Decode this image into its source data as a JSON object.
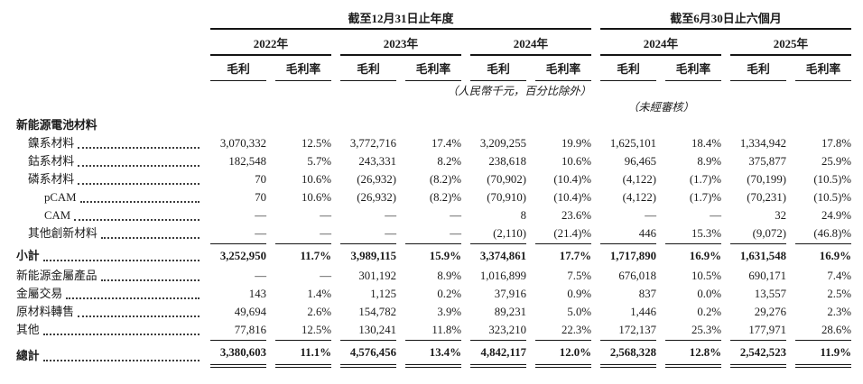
{
  "header": {
    "group_annual": "截至12月31日止年度",
    "group_interim": "截至6月30日止六個月",
    "years": [
      "2022年",
      "2023年",
      "2024年",
      "2024年",
      "2025年"
    ],
    "col_profit": "毛利",
    "col_margin": "毛利率",
    "note_currency": "（人民幣千元，百分比除外）",
    "note_unaudited": "（未經審核）"
  },
  "table": {
    "rows": [
      {
        "label": "新能源電池材料",
        "style": "section",
        "indent": 0,
        "leaders": false,
        "values": []
      },
      {
        "label": "鎳系材料",
        "style": "item",
        "indent": 1,
        "leaders": true,
        "values": [
          "3,070,332",
          "12.5%",
          "3,772,716",
          "17.4%",
          "3,209,255",
          "19.9%",
          "1,625,101",
          "18.4%",
          "1,334,942",
          "17.8%"
        ]
      },
      {
        "label": "鈷系材料",
        "style": "item",
        "indent": 1,
        "leaders": true,
        "values": [
          "182,548",
          "5.7%",
          "243,331",
          "8.2%",
          "238,618",
          "10.6%",
          "96,465",
          "8.9%",
          "375,877",
          "25.9%"
        ]
      },
      {
        "label": "磷系材料",
        "style": "item",
        "indent": 1,
        "leaders": true,
        "values": [
          "70",
          "10.6%",
          "(26,932)",
          "(8.2)%",
          "(70,902)",
          "(10.4)%",
          "(4,122)",
          "(1.7)%",
          "(70,199)",
          "(10.5)%"
        ]
      },
      {
        "label": "pCAM",
        "style": "item",
        "indent": 2,
        "leaders": true,
        "values": [
          "70",
          "10.6%",
          "(26,932)",
          "(8.2)%",
          "(70,910)",
          "(10.4)%",
          "(4,122)",
          "(1.7)%",
          "(70,231)",
          "(10.5)%"
        ]
      },
      {
        "label": "CAM",
        "style": "item",
        "indent": 2,
        "leaders": true,
        "values": [
          "—",
          "—",
          "—",
          "—",
          "8",
          "23.6%",
          "—",
          "—",
          "32",
          "24.9%"
        ]
      },
      {
        "label": "其他創新材料",
        "style": "item",
        "indent": 1,
        "leaders": true,
        "values": [
          "—",
          "—",
          "—",
          "—",
          "(2,110)",
          "(21.4)%",
          "446",
          "15.3%",
          "(9,072)",
          "(46.8)%"
        ]
      },
      {
        "label": "小計",
        "style": "subtotal",
        "indent": 0,
        "leaders": true,
        "values": [
          "3,252,950",
          "11.7%",
          "3,989,115",
          "15.9%",
          "3,374,861",
          "17.7%",
          "1,717,890",
          "16.9%",
          "1,631,548",
          "16.9%"
        ]
      },
      {
        "label": "新能源金屬產品",
        "style": "item",
        "indent": 0,
        "leaders": true,
        "values": [
          "—",
          "—",
          "301,192",
          "8.9%",
          "1,016,899",
          "7.5%",
          "676,018",
          "10.5%",
          "690,171",
          "7.4%"
        ]
      },
      {
        "label": "金屬交易",
        "style": "item",
        "indent": 0,
        "leaders": true,
        "values": [
          "143",
          "1.4%",
          "1,125",
          "0.2%",
          "37,916",
          "0.9%",
          "837",
          "0.0%",
          "13,557",
          "2.5%"
        ]
      },
      {
        "label": "原材料轉售",
        "style": "item",
        "indent": 0,
        "leaders": true,
        "values": [
          "49,694",
          "2.6%",
          "154,782",
          "3.9%",
          "89,231",
          "5.0%",
          "1,446",
          "0.2%",
          "29,276",
          "2.3%"
        ]
      },
      {
        "label": "其他",
        "style": "item",
        "indent": 0,
        "leaders": true,
        "values": [
          "77,816",
          "12.5%",
          "130,241",
          "11.8%",
          "323,210",
          "22.3%",
          "172,137",
          "25.3%",
          "177,971",
          "28.6%"
        ]
      },
      {
        "label": "總計",
        "style": "total",
        "indent": 0,
        "leaders": true,
        "values": [
          "3,380,603",
          "11.1%",
          "4,576,456",
          "13.4%",
          "4,842,117",
          "12.0%",
          "2,568,328",
          "12.8%",
          "2,542,523",
          "11.9%"
        ]
      }
    ]
  }
}
